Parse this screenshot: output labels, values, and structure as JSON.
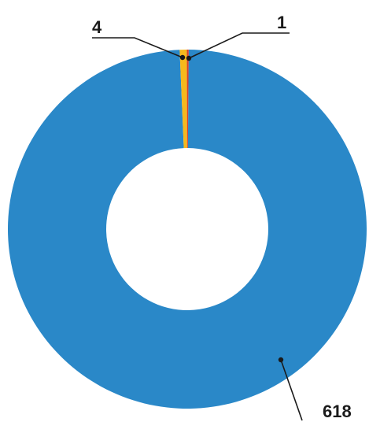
{
  "chart_data": {
    "type": "pie",
    "variant": "donut",
    "title": "",
    "legend": "none",
    "slices": [
      {
        "value": 618,
        "label": "618",
        "color": "#2a88c8"
      },
      {
        "value": 4,
        "label": "4",
        "color": "#f6b91c"
      },
      {
        "value": 1,
        "label": "1",
        "color": "#d6402b"
      }
    ]
  }
}
